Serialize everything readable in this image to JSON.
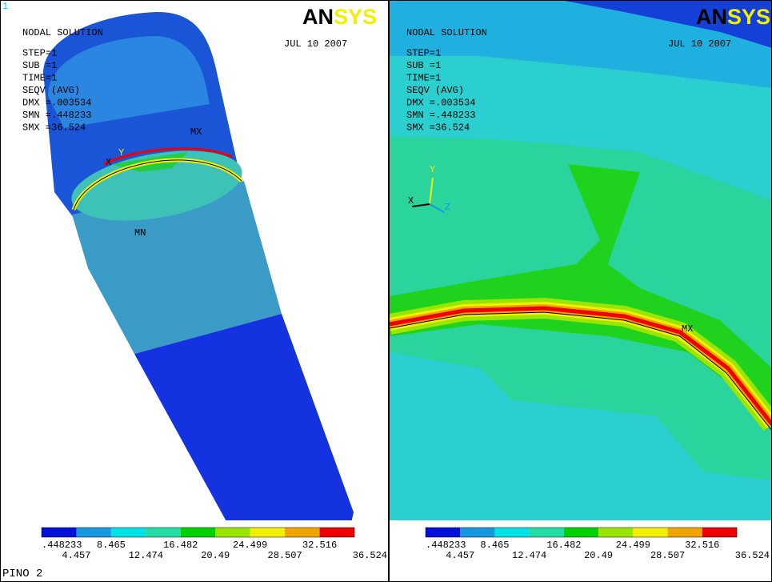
{
  "window_number": "1",
  "footer": "PINO 2",
  "legend_colors": [
    "#0010d8",
    "#1798e0",
    "#00e2e6",
    "#22dca6",
    "#00d200",
    "#9ae600",
    "#f0f000",
    "#f0a400",
    "#ee0000"
  ],
  "panels": [
    {
      "logo": [
        "AN",
        "SYS"
      ],
      "date": "JUL 10 2007",
      "info": [
        "NODAL SOLUTION",
        "STEP=1",
        "SUB =1",
        "TIME=1",
        "SEQV     (AVG)",
        "DMX =.003534",
        "SMN =.448233",
        "SMX =36.524"
      ],
      "markers": [
        "MX",
        "MN"
      ],
      "axes": [
        "Y",
        "X"
      ],
      "legend_top": [
        ".448233",
        "8.465",
        "16.482",
        "24.499",
        "32.516"
      ],
      "legend_bottom": [
        "4.457",
        "12.474",
        "20.49",
        "28.507",
        "36.524"
      ]
    },
    {
      "logo": [
        "AN",
        "SYS"
      ],
      "date": "JUL 10 2007",
      "info": [
        "NODAL SOLUTION",
        "STEP=1",
        "SUB =1",
        "TIME=1",
        "SEQV     (AVG)",
        "DMX =.003534",
        "SMN =.448233",
        "SMX =36.524"
      ],
      "markers": [
        "MX"
      ],
      "axes": [
        "Y",
        "X",
        "Z"
      ],
      "legend_top": [
        ".448233",
        "8.465",
        "16.482",
        "24.499",
        "32.516"
      ],
      "legend_bottom": [
        "4.457",
        "12.474",
        "20.49",
        "28.507",
        "36.524"
      ]
    }
  ]
}
